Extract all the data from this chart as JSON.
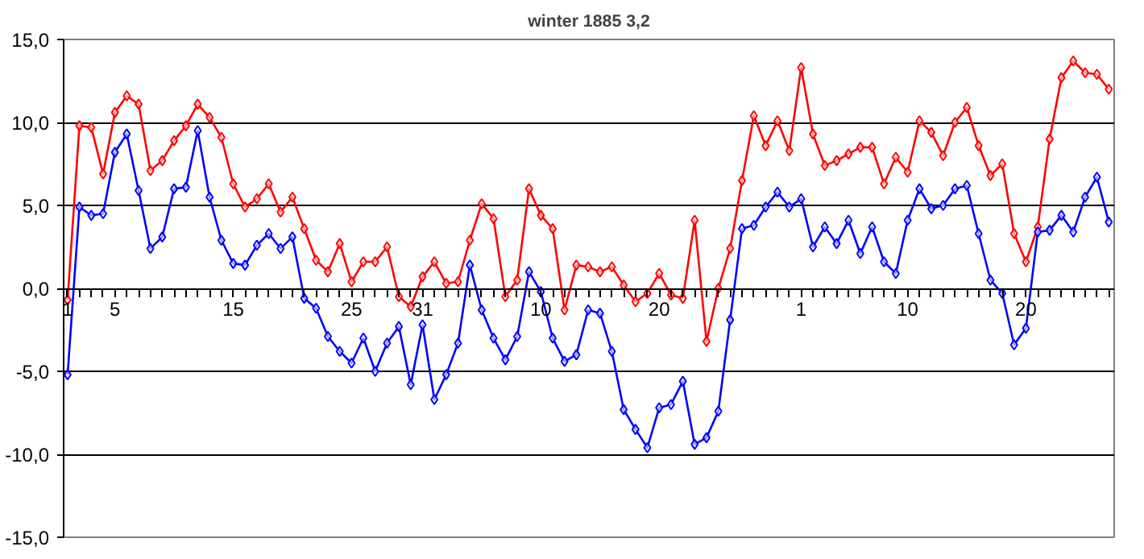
{
  "chart_data": {
    "type": "line",
    "title": "winter 1885 3,2",
    "x": [
      "1884-12-01",
      "1884-12-02",
      "1884-12-03",
      "1884-12-04",
      "1884-12-05",
      "1884-12-06",
      "1884-12-07",
      "1884-12-08",
      "1884-12-09",
      "1884-12-10",
      "1884-12-11",
      "1884-12-12",
      "1884-12-13",
      "1884-12-14",
      "1884-12-15",
      "1884-12-16",
      "1884-12-17",
      "1884-12-18",
      "1884-12-19",
      "1884-12-20",
      "1884-12-21",
      "1884-12-22",
      "1884-12-23",
      "1884-12-24",
      "1884-12-25",
      "1884-12-26",
      "1884-12-27",
      "1884-12-28",
      "1884-12-29",
      "1884-12-30",
      "1884-12-31",
      "1885-01-01",
      "1885-01-02",
      "1885-01-03",
      "1885-01-04",
      "1885-01-05",
      "1885-01-06",
      "1885-01-07",
      "1885-01-08",
      "1885-01-09",
      "1885-01-10",
      "1885-01-11",
      "1885-01-12",
      "1885-01-13",
      "1885-01-14",
      "1885-01-15",
      "1885-01-16",
      "1885-01-17",
      "1885-01-18",
      "1885-01-19",
      "1885-01-20",
      "1885-01-21",
      "1885-01-22",
      "1885-01-23",
      "1885-01-24",
      "1885-01-25",
      "1885-01-26",
      "1885-01-27",
      "1885-01-28",
      "1885-01-29",
      "1885-01-30",
      "1885-01-31",
      "1885-02-01",
      "1885-02-02",
      "1885-02-03",
      "1885-02-04",
      "1885-02-05",
      "1885-02-06",
      "1885-02-07",
      "1885-02-08",
      "1885-02-09",
      "1885-02-10",
      "1885-02-11",
      "1885-02-12",
      "1885-02-13",
      "1885-02-14",
      "1885-02-15",
      "1885-02-16",
      "1885-02-17",
      "1885-02-18",
      "1885-02-19",
      "1885-02-20",
      "1885-02-21",
      "1885-02-22",
      "1885-02-23",
      "1885-02-24",
      "1885-02-25",
      "1885-02-26",
      "1885-02-27"
    ],
    "series": [
      {
        "color": "#ff0000",
        "values": [
          -0.7,
          9.8,
          9.7,
          6.9,
          10.6,
          11.6,
          11.1,
          7.1,
          7.7,
          8.9,
          9.8,
          11.1,
          10.3,
          9.1,
          6.3,
          4.9,
          5.4,
          6.3,
          4.6,
          5.5,
          3.6,
          1.7,
          1.0,
          2.7,
          0.4,
          1.6,
          1.6,
          2.5,
          -0.5,
          -1.1,
          0.7,
          1.6,
          0.3,
          0.4,
          2.9,
          5.1,
          4.2,
          -0.5,
          0.5,
          6.0,
          4.4,
          3.6,
          -1.3,
          1.4,
          1.3,
          1.0,
          1.3,
          0.2,
          -0.8,
          -0.3,
          0.9,
          -0.4,
          -0.6,
          4.1,
          -3.2,
          0.0,
          2.4,
          6.5,
          10.4,
          8.6,
          10.1,
          8.3,
          13.3,
          9.3,
          7.4,
          7.7,
          8.1,
          8.5,
          8.5,
          6.3,
          7.9,
          7.0,
          10.1,
          9.4,
          8.0,
          10.0,
          10.9,
          8.6,
          6.8,
          7.5,
          3.3,
          1.6,
          3.7,
          9.0,
          12.7,
          13.7,
          13.0,
          12.9,
          12.0
        ]
      },
      {
        "color": "#0000ff",
        "values": [
          -5.2,
          4.9,
          4.4,
          4.5,
          8.2,
          9.3,
          5.9,
          2.4,
          3.1,
          6.0,
          6.1,
          9.5,
          5.5,
          2.9,
          1.5,
          1.4,
          2.6,
          3.3,
          2.4,
          3.1,
          -0.6,
          -1.2,
          -2.9,
          -3.8,
          -4.5,
          -3.0,
          -5.0,
          -3.3,
          -2.3,
          -5.8,
          -2.2,
          -6.7,
          -5.2,
          -3.3,
          1.4,
          -1.3,
          -3.0,
          -4.3,
          -2.9,
          1.0,
          -0.2,
          -3.0,
          -4.4,
          -4.0,
          -1.3,
          -1.5,
          -3.8,
          -7.3,
          -8.5,
          -9.6,
          -7.2,
          -7.0,
          -5.6,
          -9.4,
          -9.0,
          -7.4,
          -1.9,
          3.6,
          3.8,
          4.9,
          5.8,
          4.9,
          5.4,
          2.5,
          3.7,
          2.7,
          4.1,
          2.1,
          3.7,
          1.6,
          0.9,
          4.1,
          6.0,
          4.8,
          5.0,
          6.0,
          6.2,
          3.3,
          0.5,
          -0.3,
          -3.4,
          -2.4,
          3.4,
          3.5,
          4.4,
          3.4,
          5.5,
          6.7,
          4.0
        ]
      }
    ],
    "xlim": [
      "1884-11-30T16:00",
      "1885-02-27T11:00"
    ],
    "xticks": [
      {
        "value": "1884-12-01",
        "label": "1"
      },
      {
        "value": "1884-12-05",
        "label": "5"
      },
      {
        "value": "1884-12-15",
        "label": "15"
      },
      {
        "value": "1884-12-25",
        "label": "25"
      },
      {
        "value": "1884-12-31",
        "label": "31"
      },
      {
        "value": "1885-01-10",
        "label": "10"
      },
      {
        "value": "1885-01-20",
        "label": "20"
      },
      {
        "value": "1885-02-01",
        "label": "1"
      },
      {
        "value": "1885-02-10",
        "label": "10"
      },
      {
        "value": "1885-02-20",
        "label": "20"
      }
    ],
    "ylim": [
      -15,
      15
    ],
    "yticks": [
      {
        "value": -15,
        "label": "-15,0"
      },
      {
        "value": -10,
        "label": "-10,0"
      },
      {
        "value": -5,
        "label": "-5,0"
      },
      {
        "value": 0,
        "label": "0,0"
      },
      {
        "value": 5,
        "label": "5,0"
      },
      {
        "value": 10,
        "label": "10,0"
      },
      {
        "value": 15,
        "label": "15,0"
      }
    ],
    "grid": "y",
    "marker": "diamond",
    "line_style": "solid"
  }
}
